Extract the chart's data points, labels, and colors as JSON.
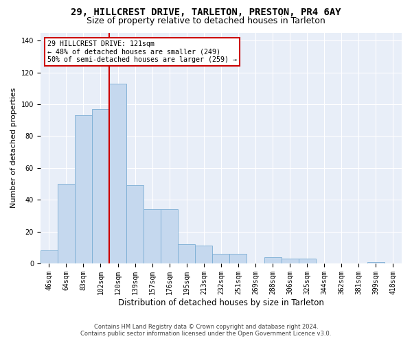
{
  "title": "29, HILLCREST DRIVE, TARLETON, PRESTON, PR4 6AY",
  "subtitle": "Size of property relative to detached houses in Tarleton",
  "xlabel": "Distribution of detached houses by size in Tarleton",
  "ylabel": "Number of detached properties",
  "categories": [
    "46sqm",
    "64sqm",
    "83sqm",
    "102sqm",
    "120sqm",
    "139sqm",
    "157sqm",
    "176sqm",
    "195sqm",
    "213sqm",
    "232sqm",
    "251sqm",
    "269sqm",
    "288sqm",
    "306sqm",
    "325sqm",
    "344sqm",
    "362sqm",
    "381sqm",
    "399sqm",
    "418sqm"
  ],
  "values": [
    8,
    50,
    93,
    97,
    113,
    49,
    34,
    34,
    12,
    11,
    6,
    6,
    0,
    4,
    3,
    3,
    0,
    0,
    0,
    1,
    0
  ],
  "bar_color": "#c5d8ee",
  "bar_edge_color": "#7aadd4",
  "vline_x": 4.0,
  "vline_color": "#cc0000",
  "annotation_text": "29 HILLCREST DRIVE: 121sqm\n← 48% of detached houses are smaller (249)\n50% of semi-detached houses are larger (259) →",
  "annotation_box_color": "white",
  "annotation_box_edge": "#cc0000",
  "ylim": [
    0,
    145
  ],
  "yticks": [
    0,
    20,
    40,
    60,
    80,
    100,
    120,
    140
  ],
  "plot_bg": "#e8eef8",
  "footer_line1": "Contains HM Land Registry data © Crown copyright and database right 2024.",
  "footer_line2": "Contains public sector information licensed under the Open Government Licence v3.0.",
  "title_fontsize": 10,
  "subtitle_fontsize": 9,
  "tick_fontsize": 7,
  "ylabel_fontsize": 8,
  "xlabel_fontsize": 8.5
}
